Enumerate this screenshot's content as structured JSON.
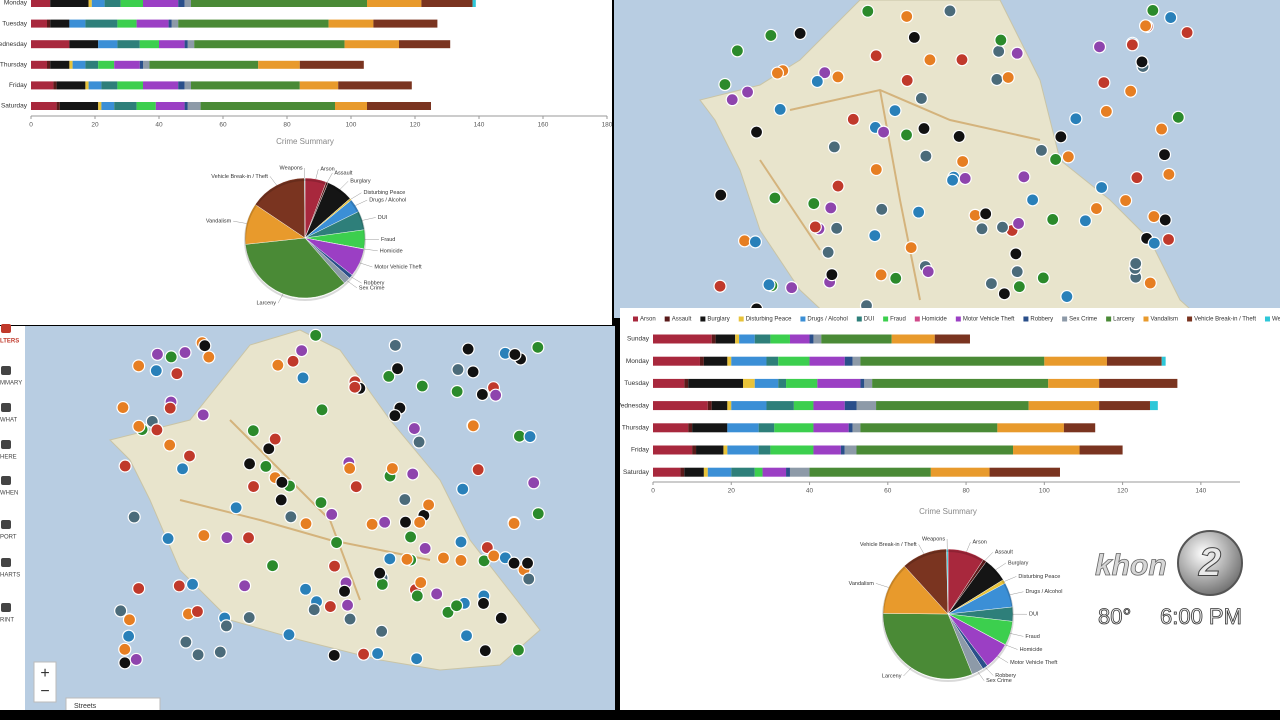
{
  "chart_data": [
    {
      "type": "bar",
      "orientation": "horizontal",
      "stacked": true,
      "categories": [
        "Monday",
        "Tuesday",
        "Wednesday",
        "Thursday",
        "Friday",
        "Saturday"
      ],
      "xlim": [
        0,
        180
      ],
      "xticks": [
        0,
        20,
        40,
        60,
        80,
        100,
        120,
        140,
        160,
        180
      ],
      "series": [
        {
          "color": "#a8283d",
          "values": [
            6,
            5,
            12,
            5,
            7,
            8
          ]
        },
        {
          "color": "#5a1a1a",
          "values": [
            0,
            1,
            0,
            1,
            1,
            1
          ]
        },
        {
          "color": "#151515",
          "values": [
            12,
            6,
            9,
            6,
            9,
            12
          ]
        },
        {
          "color": "#e8c33a",
          "values": [
            1,
            0,
            0,
            1,
            1,
            1
          ]
        },
        {
          "color": "#3b8fd6",
          "values": [
            4,
            5,
            6,
            4,
            4,
            4
          ]
        },
        {
          "color": "#2e7f7a",
          "values": [
            5,
            10,
            7,
            4,
            5,
            7
          ]
        },
        {
          "color": "#3ccf4e",
          "values": [
            7,
            6,
            6,
            5,
            8,
            6
          ]
        },
        {
          "color": "#d04a8a",
          "values": [
            0,
            0,
            0,
            0,
            0,
            0
          ]
        },
        {
          "color": "#9b3fc4",
          "values": [
            11,
            10,
            8,
            8,
            11,
            9
          ]
        },
        {
          "color": "#2a4f8a",
          "values": [
            2,
            1,
            1,
            1,
            2,
            1
          ]
        },
        {
          "color": "#8d9aa8",
          "values": [
            2,
            2,
            2,
            2,
            2,
            4
          ]
        },
        {
          "color": "#4a8a36",
          "values": [
            55,
            47,
            47,
            34,
            34,
            42
          ]
        },
        {
          "color": "#e89a2c",
          "values": [
            17,
            14,
            17,
            13,
            12,
            10
          ]
        },
        {
          "color": "#7a3420",
          "values": [
            16,
            20,
            16,
            20,
            23,
            20
          ]
        },
        {
          "color": "#2ec7d8",
          "values": [
            1,
            0,
            0,
            0,
            0,
            0
          ]
        }
      ]
    },
    {
      "type": "pie",
      "title": "Crime Summary",
      "categories": [
        "Arson",
        "Assault",
        "Burglary",
        "Disturbing Peace",
        "Drugs / Alcohol",
        "DUI",
        "Fraud",
        "Homicide",
        "Motor Vehicle Theft",
        "Robbery",
        "Sex Crime",
        "Larceny",
        "Vandalism",
        "Vehicle Break-in / Theft",
        "Weapons"
      ],
      "values": [
        43,
        4,
        54,
        4,
        27,
        38,
        38,
        0.5,
        57,
        8,
        14,
        259,
        83,
        115,
        1
      ],
      "colors": [
        "#a8283d",
        "#5a1a1a",
        "#151515",
        "#e8c33a",
        "#3b8fd6",
        "#2e7f7a",
        "#3ccf4e",
        "#d04a8a",
        "#9b3fc4",
        "#2a4f8a",
        "#8d9aa8",
        "#4a8a36",
        "#e89a2c",
        "#7a3420",
        "#2ec7d8"
      ]
    },
    {
      "type": "bar",
      "orientation": "horizontal",
      "stacked": true,
      "legend": "top",
      "categories": [
        "Sunday",
        "Monday",
        "Tuesday",
        "Wednesday",
        "Thursday",
        "Friday",
        "Saturday"
      ],
      "xlim": [
        0,
        150
      ],
      "xticks": [
        0,
        20,
        40,
        60,
        80,
        100,
        120,
        140
      ],
      "series": [
        {
          "name": "Arson",
          "color": "#a8283d",
          "values": [
            15,
            12,
            8,
            14,
            9,
            10,
            7
          ]
        },
        {
          "name": "Assault",
          "color": "#5a1a1a",
          "values": [
            1,
            1,
            1,
            1,
            1,
            1,
            1
          ]
        },
        {
          "name": "Burglary",
          "color": "#151515",
          "values": [
            5,
            6,
            14,
            4,
            9,
            7,
            5
          ]
        },
        {
          "name": "Disturbing Peace",
          "color": "#e8c33a",
          "values": [
            1,
            1,
            3,
            1,
            0,
            1,
            1
          ]
        },
        {
          "name": "Drugs / Alcohol",
          "color": "#3b8fd6",
          "values": [
            4,
            9,
            6,
            9,
            8,
            8,
            6
          ]
        },
        {
          "name": "DUI",
          "color": "#2e7f7a",
          "values": [
            4,
            3,
            2,
            7,
            4,
            3,
            6
          ]
        },
        {
          "name": "Fraud",
          "color": "#3ccf4e",
          "values": [
            5,
            8,
            8,
            5,
            10,
            11,
            2
          ]
        },
        {
          "name": "Homicide",
          "color": "#d04a8a",
          "values": [
            0,
            0,
            0,
            0,
            0,
            0,
            0
          ]
        },
        {
          "name": "Motor Vehicle Theft",
          "color": "#9b3fc4",
          "values": [
            5,
            9,
            11,
            8,
            9,
            7,
            6
          ]
        },
        {
          "name": "Robbery",
          "color": "#2a4f8a",
          "values": [
            1,
            2,
            1,
            3,
            1,
            1,
            1
          ]
        },
        {
          "name": "Sex Crime",
          "color": "#8d9aa8",
          "values": [
            2,
            2,
            2,
            5,
            2,
            3,
            5
          ]
        },
        {
          "name": "Larceny",
          "color": "#4a8a36",
          "values": [
            18,
            47,
            45,
            39,
            35,
            40,
            31
          ]
        },
        {
          "name": "Vandalism",
          "color": "#e89a2c",
          "values": [
            11,
            16,
            13,
            18,
            17,
            17,
            15
          ]
        },
        {
          "name": "Vehicle Break-in / Theft",
          "color": "#7a3420",
          "values": [
            9,
            14,
            20,
            13,
            8,
            11,
            18
          ]
        },
        {
          "name": "Weapons",
          "color": "#2ec7d8",
          "values": [
            0,
            1,
            0,
            2,
            0,
            0,
            0
          ]
        }
      ]
    },
    {
      "type": "pie",
      "title": "Crime Summary",
      "categories": [
        "Arson",
        "Assault",
        "Burglary",
        "Disturbing Peace",
        "Drugs / Alcohol",
        "DUI",
        "Fraud",
        "Homicide",
        "Motor Vehicle Theft",
        "Robbery",
        "Sex Crime",
        "Larceny",
        "Vandalism",
        "Vehicle Break-in / Theft",
        "Weapons"
      ],
      "values": [
        75,
        7,
        50,
        8,
        50,
        29,
        49,
        0.5,
        55,
        11,
        24,
        255,
        107,
        93,
        3
      ],
      "colors": [
        "#a8283d",
        "#5a1a1a",
        "#151515",
        "#e8c33a",
        "#3b8fd6",
        "#2e7f7a",
        "#3ccf4e",
        "#d04a8a",
        "#9b3fc4",
        "#2a4f8a",
        "#8d9aa8",
        "#4a8a36",
        "#e89a2c",
        "#7a3420",
        "#2ec7d8"
      ]
    }
  ],
  "sidebar": {
    "items": [
      "LTERS",
      "MMARY",
      "WHAT",
      "HERE",
      "WHEN",
      "PORT",
      "HARTS",
      "RINT"
    ]
  },
  "map_controls": {
    "zoom_in": "+",
    "zoom_out": "−",
    "layer": "Streets"
  },
  "overlay": {
    "logo_text": "khon",
    "logo_number": "2",
    "temperature": "80°",
    "time": "6:00 PM"
  }
}
